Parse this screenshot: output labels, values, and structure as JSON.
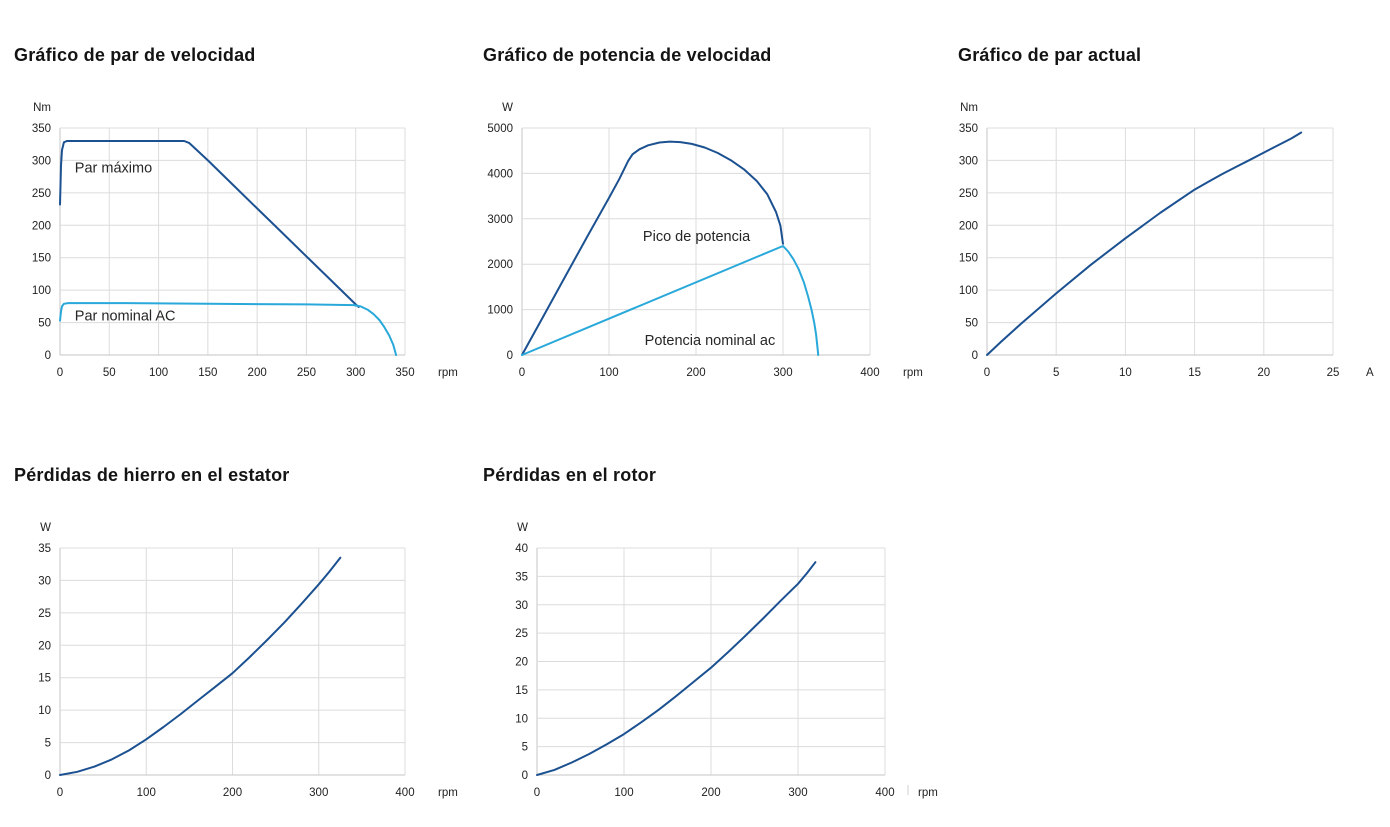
{
  "page": {
    "background": "#ffffff"
  },
  "colors": {
    "series_dark": "#1C5191",
    "series_light": "#29A8DA",
    "grid": "#DCDCDC",
    "axis": "#C4C4C4",
    "stray_tick": "#D0D0D0",
    "title_text": "#141414",
    "tick_text": "#222222"
  },
  "chart_data": [
    {
      "type": "line",
      "title": "Gráfico de par de velocidad",
      "y_unit": "Nm",
      "x_unit": "rpm",
      "xlim": [
        0,
        350
      ],
      "ylim": [
        0,
        350
      ],
      "x_ticks": [
        0,
        50,
        100,
        150,
        200,
        250,
        300,
        350
      ],
      "y_ticks": [
        0,
        50,
        100,
        150,
        200,
        250,
        300,
        350
      ],
      "grid": true,
      "annotations": [
        {
          "text": "Par máximo",
          "x": 15,
          "y": 300
        },
        {
          "text": "Par nominal AC",
          "x": 15,
          "y": 72
        }
      ],
      "series": [
        {
          "name": "Par máximo",
          "color": "dark",
          "points": [
            [
              0,
              232
            ],
            [
              1,
              292
            ],
            [
              2,
              316
            ],
            [
              4,
              328
            ],
            [
              7,
              330
            ],
            [
              126,
              330
            ],
            [
              131,
              327
            ],
            [
              150,
              300
            ],
            [
              175,
              263
            ],
            [
              200,
              226
            ],
            [
              225,
              189
            ],
            [
              250,
              152
            ],
            [
              275,
              115
            ],
            [
              300,
              78
            ],
            [
              303,
              74
            ]
          ]
        },
        {
          "name": "Par nominal AC",
          "color": "light",
          "points": [
            [
              0,
              53
            ],
            [
              1,
              67
            ],
            [
              2,
              75
            ],
            [
              4,
              79
            ],
            [
              8,
              80
            ],
            [
              60,
              80
            ],
            [
              150,
              79
            ],
            [
              250,
              78
            ],
            [
              298,
              77
            ],
            [
              305,
              75
            ],
            [
              312,
              70
            ],
            [
              318,
              63
            ],
            [
              324,
              54
            ],
            [
              329,
              43
            ],
            [
              334,
              30
            ],
            [
              338,
              16
            ],
            [
              341,
              0
            ]
          ]
        }
      ]
    },
    {
      "type": "line",
      "title": "Gráfico de potencia de velocidad",
      "y_unit": "W",
      "x_unit": "rpm",
      "xlim": [
        0,
        400
      ],
      "ylim": [
        0,
        5000
      ],
      "x_ticks": [
        0,
        100,
        200,
        300,
        400
      ],
      "y_ticks": [
        0,
        1000,
        2000,
        3000,
        4000,
        5000
      ],
      "grid": true,
      "annotations": [
        {
          "text": "Pico de potencia",
          "x": 139,
          "y": 2775
        },
        {
          "text": "Potencia nominal ac",
          "x": 141,
          "y": 484
        }
      ],
      "series": [
        {
          "name": "Pico de potencia",
          "color": "dark",
          "points": [
            [
              0,
              0
            ],
            [
              25,
              870
            ],
            [
              50,
              1740
            ],
            [
              75,
              2610
            ],
            [
              100,
              3460
            ],
            [
              112,
              3880
            ],
            [
              122,
              4270
            ],
            [
              127,
              4420
            ],
            [
              135,
              4530
            ],
            [
              145,
              4620
            ],
            [
              158,
              4680
            ],
            [
              170,
              4700
            ],
            [
              182,
              4690
            ],
            [
              195,
              4650
            ],
            [
              210,
              4570
            ],
            [
              225,
              4450
            ],
            [
              240,
              4290
            ],
            [
              255,
              4090
            ],
            [
              270,
              3830
            ],
            [
              282,
              3540
            ],
            [
              292,
              3150
            ],
            [
              297,
              2850
            ],
            [
              300,
              2450
            ]
          ]
        },
        {
          "name": "Potencia nominal ac",
          "color": "light",
          "points": [
            [
              0,
              0
            ],
            [
              300,
              2400
            ],
            [
              306,
              2280
            ],
            [
              312,
              2110
            ],
            [
              318,
              1890
            ],
            [
              324,
              1600
            ],
            [
              329,
              1280
            ],
            [
              333,
              980
            ],
            [
              336,
              700
            ],
            [
              338,
              450
            ],
            [
              340,
              100
            ],
            [
              340.5,
              0
            ]
          ]
        }
      ]
    },
    {
      "type": "line",
      "title": "Gráfico de par actual",
      "y_unit": "Nm",
      "x_unit": "A",
      "xlim": [
        0,
        25
      ],
      "ylim": [
        0,
        350
      ],
      "x_ticks": [
        0,
        5,
        10,
        15,
        20,
        25
      ],
      "y_ticks": [
        0,
        50,
        100,
        150,
        200,
        250,
        300,
        350
      ],
      "grid": true,
      "annotations": [],
      "series": [
        {
          "name": "Par actual",
          "color": "dark",
          "points": [
            [
              0,
              0
            ],
            [
              1,
              20
            ],
            [
              2.5,
              49
            ],
            [
              5,
              95
            ],
            [
              7.5,
              139
            ],
            [
              10,
              180
            ],
            [
              12.5,
              219
            ],
            [
              15,
              255
            ],
            [
              16,
              267
            ],
            [
              17,
              279
            ],
            [
              18,
              290
            ],
            [
              19,
              301
            ],
            [
              20,
              312
            ],
            [
              21,
              323
            ],
            [
              22,
              334
            ],
            [
              22.7,
              343
            ]
          ]
        }
      ]
    },
    {
      "type": "line",
      "title": "Pérdidas de hierro en el estator",
      "y_unit": "W",
      "x_unit": "rpm",
      "xlim": [
        0,
        400
      ],
      "ylim": [
        0,
        35
      ],
      "x_ticks": [
        0,
        100,
        200,
        300,
        400
      ],
      "y_ticks": [
        0,
        5,
        10,
        15,
        20,
        25,
        30,
        35
      ],
      "grid": true,
      "annotations": [],
      "series": [
        {
          "name": "Pérdidas de hierro en el estator",
          "color": "dark",
          "points": [
            [
              0,
              0
            ],
            [
              20,
              0.5
            ],
            [
              40,
              1.3
            ],
            [
              60,
              2.4
            ],
            [
              80,
              3.8
            ],
            [
              100,
              5.5
            ],
            [
              120,
              7.4
            ],
            [
              140,
              9.4
            ],
            [
              160,
              11.5
            ],
            [
              180,
              13.6
            ],
            [
              200,
              15.7
            ],
            [
              220,
              18.2
            ],
            [
              240,
              20.8
            ],
            [
              260,
              23.5
            ],
            [
              280,
              26.4
            ],
            [
              300,
              29.4
            ],
            [
              312,
              31.3
            ],
            [
              325,
              33.5
            ]
          ]
        }
      ]
    },
    {
      "type": "line",
      "title": "Pérdidas en el rotor",
      "y_unit": "W",
      "x_unit": "rpm",
      "xlim": [
        0,
        400
      ],
      "ylim": [
        0,
        40
      ],
      "x_ticks": [
        0,
        100,
        200,
        300,
        400
      ],
      "y_ticks": [
        0,
        5,
        10,
        15,
        20,
        25,
        30,
        35,
        40
      ],
      "grid": true,
      "stray_tick": true,
      "annotations": [],
      "series": [
        {
          "name": "Pérdidas en el rotor",
          "color": "dark",
          "points": [
            [
              0,
              0
            ],
            [
              20,
              0.9
            ],
            [
              40,
              2.2
            ],
            [
              60,
              3.7
            ],
            [
              80,
              5.4
            ],
            [
              100,
              7.2
            ],
            [
              120,
              9.3
            ],
            [
              140,
              11.5
            ],
            [
              160,
              13.9
            ],
            [
              180,
              16.4
            ],
            [
              200,
              18.9
            ],
            [
              220,
              21.7
            ],
            [
              240,
              24.6
            ],
            [
              260,
              27.6
            ],
            [
              280,
              30.7
            ],
            [
              300,
              33.7
            ],
            [
              310,
              35.5
            ],
            [
              320,
              37.5
            ]
          ]
        }
      ]
    }
  ]
}
